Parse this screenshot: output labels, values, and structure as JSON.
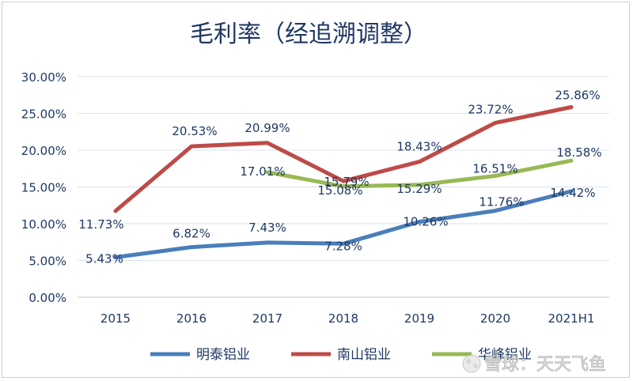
{
  "chart_data": {
    "type": "line",
    "title": "毛利率（经追溯调整）",
    "xlabel": "",
    "ylabel": "",
    "categories": [
      "2015",
      "2016",
      "2017",
      "2018",
      "2019",
      "2020",
      "2021H1"
    ],
    "ylim": [
      0,
      30
    ],
    "yticks": [
      "0.00%",
      "5.00%",
      "10.00%",
      "15.00%",
      "20.00%",
      "25.00%",
      "30.00%"
    ],
    "grid": true,
    "legend_position": "bottom",
    "series": [
      {
        "name": "明泰铝业",
        "color": "#4a7ebb",
        "values": [
          5.43,
          6.82,
          7.43,
          7.28,
          10.26,
          11.76,
          14.42
        ],
        "labels": [
          "5.43%",
          "6.82%",
          "7.43%",
          "7.28%",
          "10.26%",
          "11.76%",
          "14.42%"
        ]
      },
      {
        "name": "南山铝业",
        "color": "#be4b48",
        "values": [
          11.73,
          20.53,
          20.99,
          15.79,
          18.43,
          23.72,
          25.86
        ],
        "labels": [
          "11.73%",
          "20.53%",
          "20.99%",
          "15.79%",
          "18.43%",
          "23.72%",
          "25.86%"
        ]
      },
      {
        "name": "华峰铝业",
        "color": "#98b954",
        "values": [
          null,
          null,
          17.01,
          15.08,
          15.29,
          16.51,
          18.58
        ],
        "labels": [
          null,
          null,
          "17.01%",
          "15.08%",
          "15.29%",
          "16.51%",
          "18.58%"
        ]
      }
    ]
  },
  "watermark": "雪球：天天飞鱼"
}
